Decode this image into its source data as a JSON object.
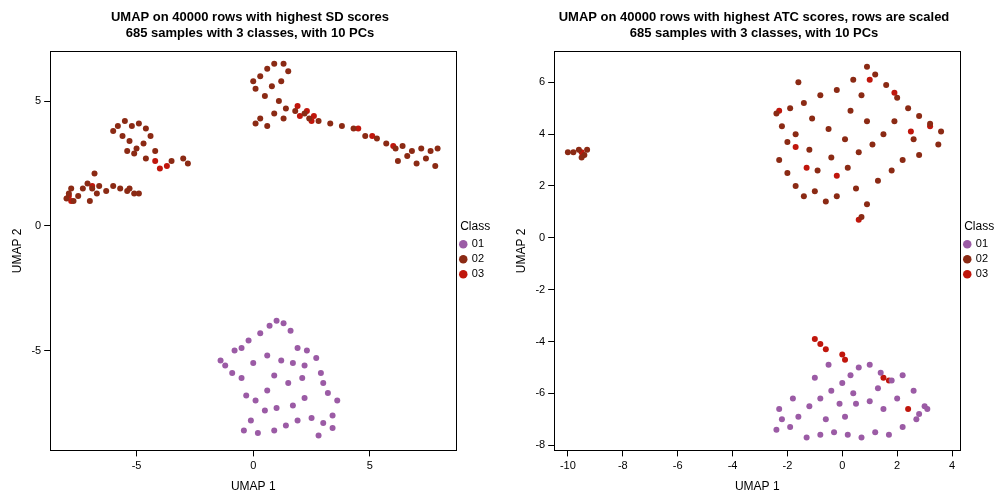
{
  "chart_data": [
    {
      "type": "scatter",
      "title": [
        "UMAP on 40000 rows with highest SD scores",
        "685 samples with 3 classes, with 10 PCs"
      ],
      "x_label": "UMAP 1",
      "y_label": "UMAP 2",
      "xlim": [
        -8.7,
        8.7
      ],
      "xticks": [
        -5,
        0,
        5
      ],
      "ylim": [
        -9,
        7
      ],
      "yticks": [
        -5,
        0,
        5
      ],
      "grid": false,
      "legend": "right",
      "legend_title": "Class",
      "marker": "circle",
      "series": [
        {
          "name": "01",
          "color": "#9B5BA5",
          "x": [
            -1.4,
            -1.2,
            -0.8,
            -0.5,
            -0.2,
            0.3,
            0.7,
            1.0,
            1.3,
            1.6,
            1.9,
            2.3,
            2.7,
            2.2,
            1.7,
            1.2,
            0.6,
            0.0,
            -0.5,
            -0.3,
            0.1,
            0.5,
            -0.1,
            -0.4,
            0.2,
            0.9,
            1.4,
            1.9,
            2.5,
            3.0,
            3.4,
            3.6,
            3.2,
            3.0,
            2.9,
            2.2,
            1.7,
            1.0,
            0.6,
            1.5,
            2.1,
            0.9,
            3.4,
            2.8,
            -0.9
          ],
          "y": [
            -5.4,
            -5.6,
            -5.0,
            -4.9,
            -4.6,
            -4.3,
            -4.0,
            -3.8,
            -3.9,
            -4.2,
            -4.9,
            -5.0,
            -5.3,
            -5.6,
            -5.5,
            -5.4,
            -5.2,
            -5.5,
            -6.1,
            -6.8,
            -7.0,
            -7.4,
            -7.8,
            -8.2,
            -8.3,
            -8.2,
            -8.0,
            -7.8,
            -7.7,
            -7.9,
            -7.6,
            -7.0,
            -6.7,
            -6.3,
            -5.9,
            -6.9,
            -7.2,
            -7.3,
            -6.6,
            -6.3,
            -6.1,
            -6.0,
            -8.1,
            -8.4,
            -5.9
          ]
        },
        {
          "name": "02",
          "color": "#8B2A14",
          "x": [
            -8.0,
            -7.9,
            -7.7,
            -7.5,
            -7.3,
            -7.1,
            -6.9,
            -6.6,
            -6.3,
            -6.0,
            -5.7,
            -5.4,
            -5.1,
            -4.9,
            -7.8,
            -7.0,
            -6.7,
            -6.8,
            -5.3,
            -6.0,
            -5.8,
            -5.5,
            -5.2,
            -4.9,
            -4.6,
            -4.4,
            -4.7,
            -5.0,
            -5.3,
            -5.6,
            -5.1,
            -4.6,
            -4.2,
            -3.5,
            -3.0,
            -2.8,
            -5.4,
            0.0,
            0.1,
            0.3,
            0.6,
            0.9,
            1.3,
            1.5,
            1.2,
            0.8,
            0.5,
            1.1,
            1.4,
            0.9,
            0.3,
            0.1,
            0.6,
            1.3,
            1.8,
            2.2,
            2.4,
            2.8,
            3.3,
            3.8,
            4.3,
            4.8,
            5.3,
            5.7,
            6.1,
            6.4,
            6.8,
            7.2,
            7.6,
            7.9,
            7.4,
            7.0,
            6.6,
            6.2,
            7.8
          ],
          "y": [
            1.1,
            1.3,
            1.0,
            1.2,
            1.5,
            1.7,
            1.5,
            1.6,
            1.4,
            1.6,
            1.5,
            1.4,
            1.3,
            1.3,
            1.5,
            1.0,
            1.3,
            2.1,
            1.5,
            3.8,
            4.0,
            4.2,
            4.0,
            4.1,
            3.9,
            3.6,
            3.3,
            3.1,
            3.4,
            3.6,
            2.9,
            2.7,
            3.0,
            2.6,
            2.7,
            2.5,
            3.0,
            5.8,
            5.5,
            6.0,
            6.3,
            6.5,
            6.5,
            6.2,
            5.8,
            5.6,
            5.2,
            5.0,
            4.7,
            4.5,
            4.3,
            4.1,
            4.0,
            4.3,
            4.6,
            4.5,
            4.3,
            4.2,
            4.1,
            4.0,
            3.9,
            3.6,
            3.5,
            3.3,
            3.1,
            3.2,
            3.0,
            3.1,
            3.0,
            3.1,
            2.7,
            2.5,
            2.8,
            2.6,
            2.4
          ]
        },
        {
          "name": "03",
          "color": "#C0160C",
          "x": [
            -7.9,
            -7.8,
            -4.0,
            -3.7,
            -4.2,
            2.0,
            2.3,
            2.6,
            2.5,
            4.5,
            5.1,
            6.0,
            -6.9,
            1.9
          ],
          "y": [
            1.2,
            1.0,
            2.3,
            2.4,
            2.6,
            4.4,
            4.6,
            4.4,
            4.2,
            3.9,
            3.6,
            3.2,
            1.6,
            4.8
          ]
        }
      ]
    },
    {
      "type": "scatter",
      "title": [
        "UMAP on 40000 rows with highest ATC scores, rows are scaled",
        "685 samples with 3 classes, with 10 PCs"
      ],
      "x_label": "UMAP 1",
      "y_label": "UMAP 2",
      "xlim": [
        -10.5,
        4.3
      ],
      "xticks": [
        -10,
        -8,
        -6,
        -4,
        -2,
        0,
        2,
        4
      ],
      "ylim": [
        -8.2,
        7.2
      ],
      "yticks": [
        -8,
        -6,
        -4,
        -2,
        0,
        2,
        4,
        6
      ],
      "grid": false,
      "legend": "right",
      "legend_title": "Class",
      "marker": "circle",
      "series": [
        {
          "name": "01",
          "color": "#9B5BA5",
          "x": [
            -2.4,
            -2.2,
            -2.3,
            -1.9,
            -1.6,
            -1.2,
            -0.8,
            -0.4,
            0.0,
            0.3,
            0.6,
            1.0,
            1.4,
            1.8,
            2.2,
            2.6,
            3.0,
            2.7,
            2.2,
            1.7,
            1.2,
            0.7,
            0.2,
            -0.3,
            -0.8,
            -1.3,
            -0.6,
            0.1,
            0.5,
            1.0,
            1.5,
            2.0,
            -1.0,
            -0.5,
            0.4,
            1.3,
            -1.8,
            2.8,
            3.1,
            -0.1
          ],
          "y": [
            -7.4,
            -7.0,
            -6.6,
            -7.3,
            -6.9,
            -6.5,
            -6.2,
            -5.9,
            -5.6,
            -5.3,
            -5.0,
            -4.9,
            -5.2,
            -5.5,
            -5.3,
            -5.9,
            -6.5,
            -7.0,
            -7.3,
            -7.6,
            -7.5,
            -7.7,
            -7.6,
            -7.5,
            -7.6,
            -7.7,
            -7.0,
            -6.9,
            -6.4,
            -6.3,
            -6.6,
            -6.2,
            -5.4,
            -4.9,
            -6.0,
            -5.8,
            -6.2,
            -6.8,
            -6.6,
            -6.4
          ]
        },
        {
          "name": "02",
          "color": "#8B2A14",
          "x": [
            -2.4,
            -2.2,
            -2.0,
            -2.3,
            -2.0,
            -1.7,
            -1.4,
            -1.0,
            -0.6,
            -0.2,
            0.5,
            0.7,
            0.9,
            1.3,
            1.8,
            2.2,
            2.8,
            3.5,
            3.6,
            3.2,
            2.8,
            2.4,
            2.0,
            1.6,
            1.2,
            0.9,
            0.4,
            -0.2,
            -0.8,
            -1.4,
            -1.9,
            -1.6,
            -1.1,
            -0.5,
            0.1,
            0.6,
            1.1,
            1.5,
            0.9,
            0.3,
            -0.4,
            -1.2,
            -0.9,
            0.2,
            1.9,
            2.6,
            -1.7,
            0.7,
            -10.0,
            -9.8,
            -9.6,
            -9.4,
            -9.3,
            -9.5
          ],
          "y": [
            4.8,
            4.3,
            3.7,
            3.0,
            2.5,
            2.0,
            1.6,
            1.8,
            1.4,
            1.6,
            1.9,
            0.8,
            1.3,
            2.2,
            2.6,
            3.0,
            3.2,
            3.6,
            4.1,
            4.4,
            4.7,
            5.0,
            5.4,
            5.9,
            6.3,
            6.6,
            6.1,
            5.7,
            5.5,
            5.2,
            5.0,
            6.0,
            4.6,
            4.2,
            3.8,
            3.3,
            3.6,
            4.0,
            4.5,
            4.9,
            3.1,
            3.4,
            2.6,
            2.7,
            4.5,
            3.8,
            4.0,
            5.5,
            3.3,
            3.3,
            3.4,
            3.2,
            3.4,
            3.1
          ]
        },
        {
          "name": "03",
          "color": "#C0160C",
          "x": [
            -1.0,
            -0.8,
            -0.6,
            0.0,
            0.1,
            1.5,
            1.7,
            2.4,
            -9.5,
            -2.3,
            -1.7,
            -0.2,
            1.0,
            2.5,
            3.2,
            0.6,
            -1.3,
            1.9
          ],
          "y": [
            -3.9,
            -4.1,
            -4.3,
            -4.5,
            -4.7,
            -5.4,
            -5.5,
            -6.6,
            3.3,
            4.9,
            3.5,
            2.4,
            6.1,
            4.1,
            4.3,
            0.7,
            2.7,
            5.6
          ]
        }
      ]
    }
  ]
}
